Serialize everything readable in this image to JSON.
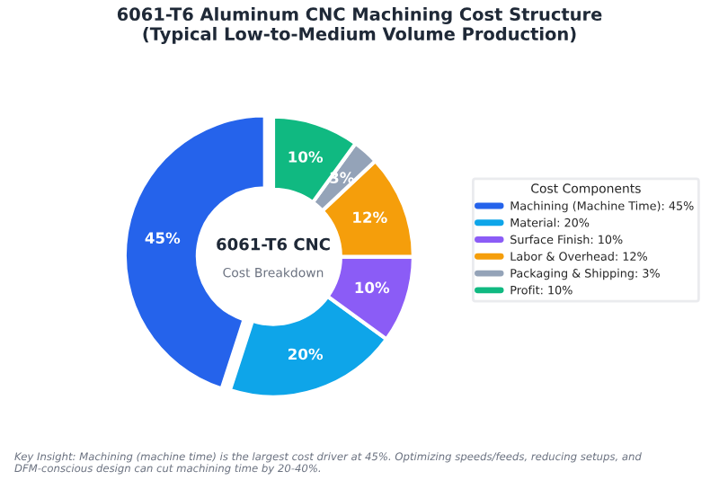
{
  "chart_data": {
    "type": "donut",
    "title": "6061-T6 Aluminum CNC Machining Cost Structure\n(Typical Low-to-Medium Volume Production)",
    "categories": [
      "Machining (Machine Time): 45%",
      "Material: 20%",
      "Surface Finish: 10%",
      "Labor & Overhead: 12%",
      "Packaging & Shipping: 3%",
      "Profit: 10%"
    ],
    "values": [
      45,
      20,
      10,
      12,
      3,
      10
    ],
    "colors": [
      "#2563eb",
      "#0ea5e9",
      "#8b5cf6",
      "#f59e0b",
      "#94a3b8",
      "#10b981"
    ],
    "value_labels": [
      "45%",
      "20%",
      "10%",
      "12%",
      "3%",
      "10%"
    ],
    "legend_title": "Cost Components",
    "legend": "right",
    "annotations": [
      "6061-T6 CNC",
      "Cost Breakdown",
      "Key Insight: Machining (machine time) is the largest cost driver at 45%. Optimizing speeds/feeds, reducing setups, and DFM-conscious design can cut machining time by 20-40%."
    ]
  }
}
